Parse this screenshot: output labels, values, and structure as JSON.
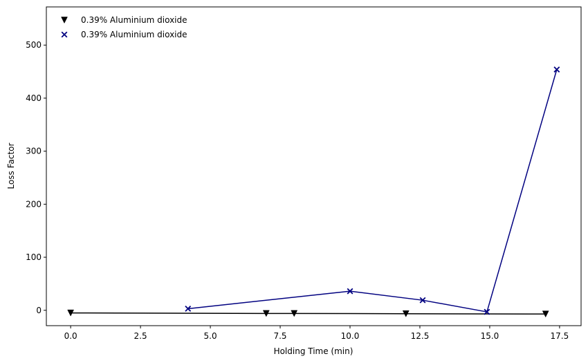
{
  "chart_data": {
    "type": "line",
    "title": "",
    "xlabel": "Holding Time (min)",
    "ylabel": "Loss Factor",
    "xlim": [
      -0.87,
      18.27
    ],
    "ylim": [
      -29,
      572
    ],
    "xticks": [
      0.0,
      2.5,
      5.0,
      7.5,
      10.0,
      12.5,
      15.0,
      17.5
    ],
    "xtick_labels": [
      "0.0",
      "2.5",
      "5.0",
      "7.5",
      "10.0",
      "12.5",
      "15.0",
      "17.5"
    ],
    "yticks": [
      0,
      100,
      200,
      300,
      400,
      500
    ],
    "ytick_labels": [
      "0",
      "100",
      "200",
      "300",
      "400",
      "500"
    ],
    "grid": false,
    "legend_position": "top-left",
    "series": [
      {
        "name": "0.39% Aluminium dioxide",
        "marker": "triangle-down",
        "color": "#000000",
        "points": [
          [
            0.0,
            -5
          ],
          [
            7.0,
            -6
          ],
          [
            8.0,
            -6
          ],
          [
            12.0,
            -6.5
          ],
          [
            17.0,
            -7
          ]
        ]
      },
      {
        "name": "0.39% Aluminium dioxide",
        "marker": "x",
        "color": "#000080",
        "points": [
          [
            4.2,
            3
          ],
          [
            10.0,
            36
          ],
          [
            12.6,
            19
          ],
          [
            14.9,
            -3
          ],
          [
            17.4,
            454
          ]
        ]
      }
    ]
  }
}
